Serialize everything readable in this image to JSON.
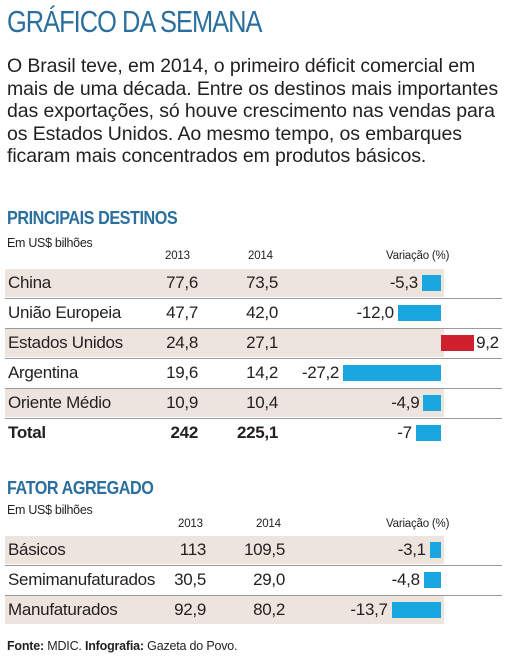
{
  "title": "GRÁFICO DA SEMANA",
  "intro": "O Brasil teve, em 2014, o primeiro déficit comercial em mais de uma década. Entre os destinos mais importantes das exportações, só houve crescimento nas vendas para os Estados Unidos. Ao mesmo tempo, os embarques ficaram mais concentrados em produtos básicos.",
  "colors": {
    "title": "#2a6f9e",
    "row_bg": "#ede5dd",
    "negative": "#1aa7e0",
    "positive": "#d0202e"
  },
  "chart_data": [
    {
      "type": "table",
      "title": "PRINCIPAIS DESTINOS",
      "unit": "Em US$ bilhões",
      "columns": [
        "2013",
        "2014",
        "Variação (%)"
      ],
      "rows": [
        {
          "label": "China",
          "y2013": "77,6",
          "y2014": "73,5",
          "variation_label": "-5,3",
          "variation": -5.3
        },
        {
          "label": "União Europeia",
          "y2013": "47,7",
          "y2014": "42,0",
          "variation_label": "-12,0",
          "variation": -12.0
        },
        {
          "label": "Estados Unidos",
          "y2013": "24,8",
          "y2014": "27,1",
          "variation_label": "9,2",
          "variation": 9.2
        },
        {
          "label": "Argentina",
          "y2013": "19,6",
          "y2014": "14,2",
          "variation_label": "-27,2",
          "variation": -27.2
        },
        {
          "label": "Oriente Médio",
          "y2013": "10,9",
          "y2014": "10,4",
          "variation_label": "-4,9",
          "variation": -4.9
        },
        {
          "label": "Total",
          "y2013": "242",
          "y2014": "225,1",
          "variation_label": "-7",
          "variation": -7,
          "total": true
        }
      ]
    },
    {
      "type": "table",
      "title": "FATOR AGREGADO",
      "unit": "Em US$ bilhões",
      "columns": [
        "2013",
        "2014",
        "Variação (%)"
      ],
      "rows": [
        {
          "label": "Básicos",
          "y2013": "113",
          "y2014": "109,5",
          "variation_label": "-3,1",
          "variation": -3.1
        },
        {
          "label": "Semimanufaturados",
          "y2013": "30,5",
          "y2014": "29,0",
          "variation_label": "-4,8",
          "variation": -4.8
        },
        {
          "label": "Manufaturados",
          "y2013": "92,9",
          "y2014": "80,2",
          "variation_label": "-13,7",
          "variation": -13.7
        }
      ]
    }
  ],
  "footer": {
    "source_label": "Fonte:",
    "source": "MDIC.",
    "credit_label": "Infografia:",
    "credit": "Gazeta do Povo."
  }
}
